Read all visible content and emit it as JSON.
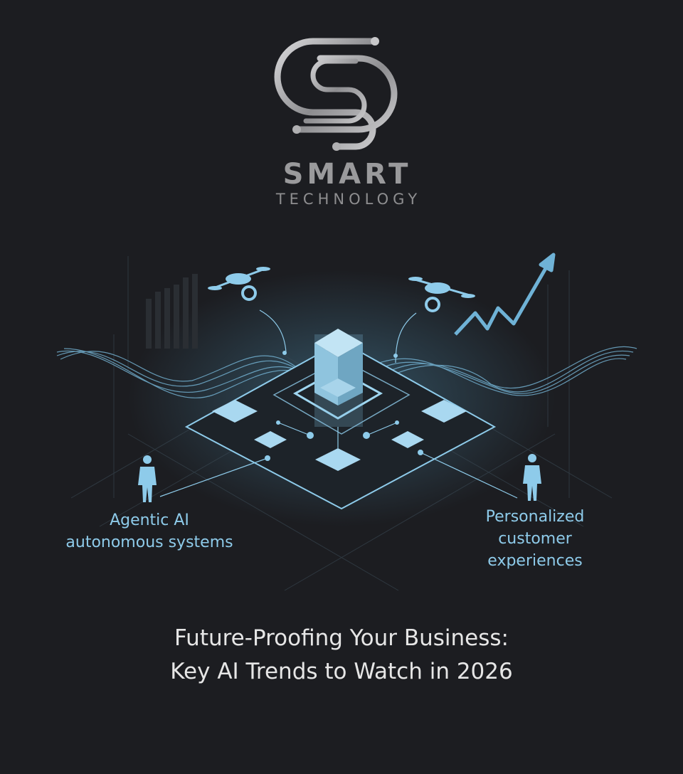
{
  "logo": {
    "line1": "SMART",
    "line2": "TECHNOLOGY",
    "icon": "circuit-s-logo-icon"
  },
  "illustration": {
    "icons": [
      "drone-icon",
      "drone-icon",
      "rising-arrow-chart-icon",
      "businessman-icon",
      "businessman-icon",
      "isometric-platform-icon",
      "data-wave-icon"
    ],
    "accent_color": "#8ecbea",
    "background_color": "#1c1d21"
  },
  "labels": {
    "left": [
      "Agentic AI",
      "autonomous systems"
    ],
    "right": [
      "Personalized",
      "customer",
      "experiences"
    ]
  },
  "title": {
    "line1": "Future-Proofing Your Business:",
    "line2": "Key AI Trends to Watch in 2026"
  }
}
